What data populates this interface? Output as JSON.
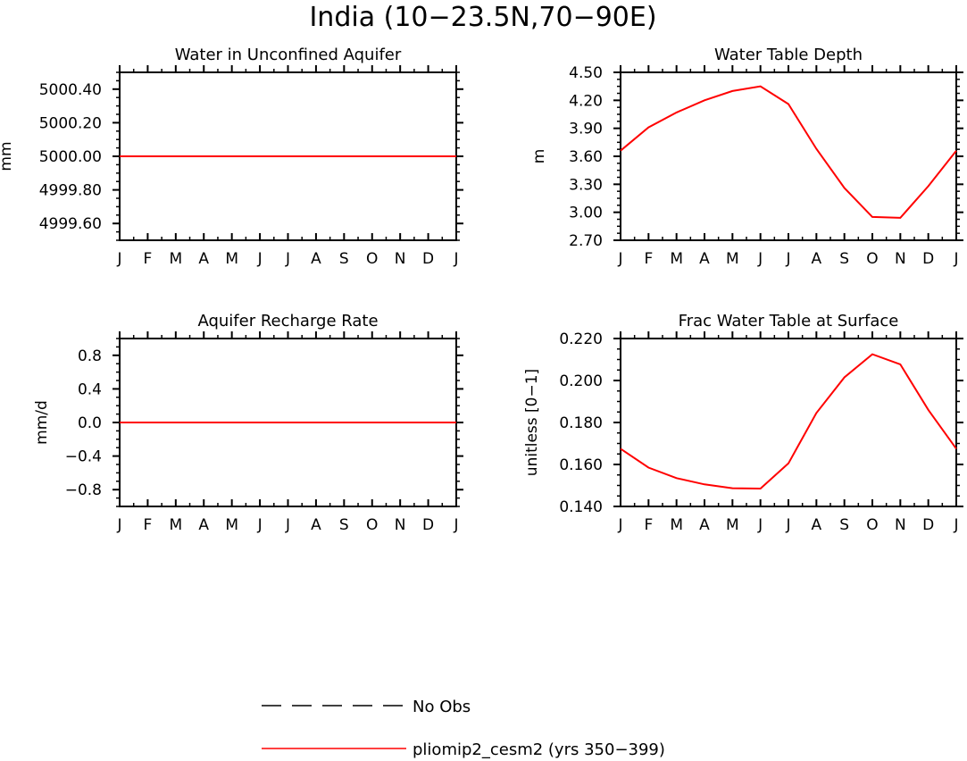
{
  "title": "India (10−23.5N,70−90E)",
  "colors": {
    "model_line": "#ff0000",
    "obs_line": "#000000",
    "axes": "#000000"
  },
  "legend": {
    "entries": [
      {
        "label": "No Obs",
        "style": "dashed",
        "color": "#000000"
      },
      {
        "label": "pliomip2_cesm2 (yrs 350−399)",
        "style": "solid",
        "color": "#ff0000"
      }
    ]
  },
  "chart_data": [
    {
      "type": "line",
      "title": "Water in Unconfined Aquifer",
      "ylabel": "mm",
      "categories": [
        "J",
        "F",
        "M",
        "A",
        "M",
        "J",
        "J",
        "A",
        "S",
        "O",
        "N",
        "D",
        "J"
      ],
      "ylim": [
        4999.5,
        5000.5
      ],
      "yticks": [
        4999.6,
        4999.8,
        5000.0,
        5000.2,
        5000.4
      ],
      "ytick_labels": [
        "4999.60",
        "4999.80",
        "5000.00",
        "5000.20",
        "5000.40"
      ],
      "series": [
        {
          "name": "pliomip2_cesm2 (yrs 350−399)",
          "values": [
            5000,
            5000,
            5000,
            5000,
            5000,
            5000,
            5000,
            5000,
            5000,
            5000,
            5000,
            5000,
            5000
          ]
        }
      ]
    },
    {
      "type": "line",
      "title": "Water Table Depth",
      "ylabel": "m",
      "categories": [
        "J",
        "F",
        "M",
        "A",
        "M",
        "J",
        "J",
        "A",
        "S",
        "O",
        "N",
        "D",
        "J"
      ],
      "ylim": [
        2.7,
        4.5
      ],
      "yticks": [
        2.7,
        3.0,
        3.3,
        3.6,
        3.9,
        4.2,
        4.5
      ],
      "ytick_labels": [
        "2.70",
        "3.00",
        "3.30",
        "3.60",
        "3.90",
        "4.20",
        "4.50"
      ],
      "series": [
        {
          "name": "pliomip2_cesm2 (yrs 350−399)",
          "values": [
            3.66,
            3.91,
            4.07,
            4.2,
            4.3,
            4.35,
            4.16,
            3.68,
            3.26,
            2.95,
            2.94,
            3.28,
            3.66
          ]
        }
      ]
    },
    {
      "type": "line",
      "title": "Aquifer Recharge Rate",
      "ylabel": "mm/d",
      "categories": [
        "J",
        "F",
        "M",
        "A",
        "M",
        "J",
        "J",
        "A",
        "S",
        "O",
        "N",
        "D",
        "J"
      ],
      "ylim": [
        -1.0,
        1.0
      ],
      "yticks": [
        -0.8,
        -0.4,
        0.0,
        0.4,
        0.8
      ],
      "ytick_labels": [
        "−0.8",
        "−0.4",
        "0.0",
        "0.4",
        "0.8"
      ],
      "series": [
        {
          "name": "pliomip2_cesm2 (yrs 350−399)",
          "values": [
            0,
            0,
            0,
            0,
            0,
            0,
            0,
            0,
            0,
            0,
            0,
            0,
            0
          ]
        }
      ]
    },
    {
      "type": "line",
      "title": "Frac Water Table at Surface",
      "ylabel": "unitless [0−1]",
      "categories": [
        "J",
        "F",
        "M",
        "A",
        "M",
        "J",
        "J",
        "A",
        "S",
        "O",
        "N",
        "D",
        "J"
      ],
      "ylim": [
        0.14,
        0.22
      ],
      "yticks": [
        0.14,
        0.16,
        0.18,
        0.2,
        0.22
      ],
      "ytick_labels": [
        "0.140",
        "0.160",
        "0.180",
        "0.200",
        "0.220"
      ],
      "series": [
        {
          "name": "pliomip2_cesm2 (yrs 350−399)",
          "values": [
            0.1675,
            0.1585,
            0.1535,
            0.1505,
            0.1487,
            0.1485,
            0.1605,
            0.1845,
            0.2015,
            0.2125,
            0.2077,
            0.186,
            0.1675
          ]
        }
      ]
    }
  ]
}
